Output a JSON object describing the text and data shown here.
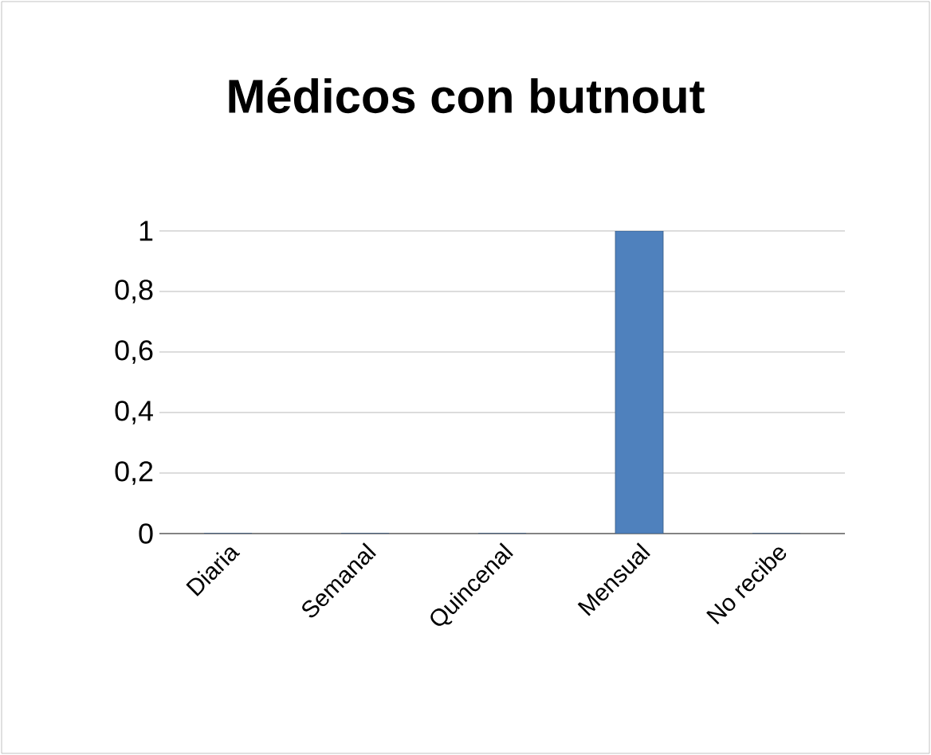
{
  "chart_data": {
    "type": "bar",
    "title": "Médicos con butnout",
    "categories": [
      "Diaria",
      "Semanal",
      "Quincenal",
      "Mensual",
      "No recibe"
    ],
    "values": [
      0,
      0,
      0,
      1,
      0
    ],
    "color": "#4f81bd",
    "ylim": [
      0,
      1
    ],
    "yticks": [
      0,
      {
        "value": 0.2,
        "label": "0,2"
      },
      {
        "value": 0.4,
        "label": "0,4"
      },
      {
        "value": 0.6,
        "label": "0,6"
      },
      {
        "value": 0.8,
        "label": "0,8"
      },
      1
    ],
    "grid": "y"
  }
}
